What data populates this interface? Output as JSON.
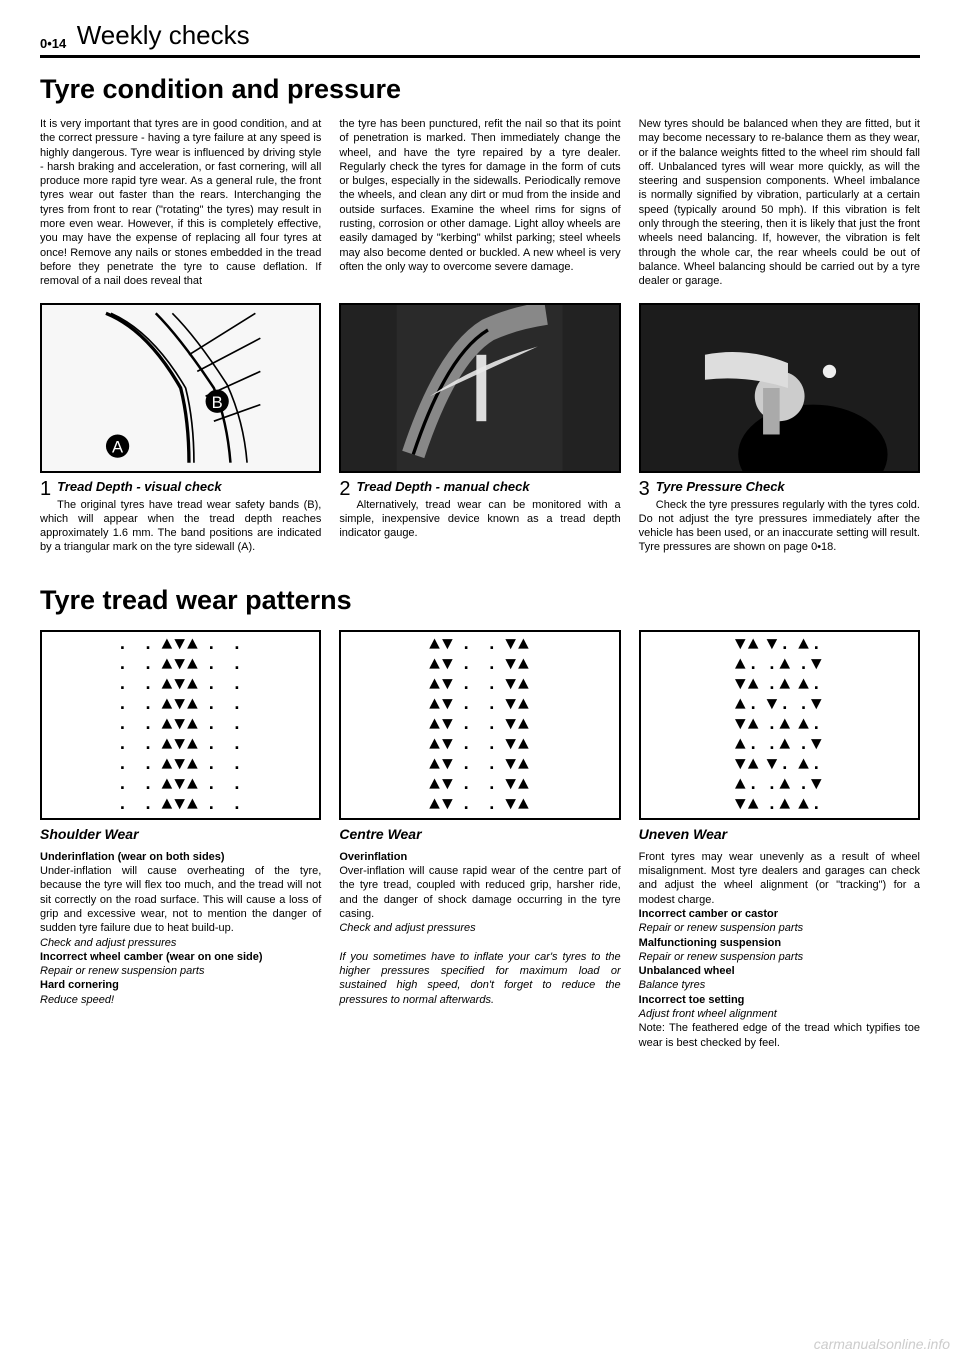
{
  "header": {
    "num": "0•14",
    "title": "Weekly checks"
  },
  "main_title": "Tyre condition and pressure",
  "intro_cols": [
    "It is very important that tyres are in good condition, and at the correct pressure - having a tyre failure at any speed is highly dangerous. Tyre wear is influenced by driving style - harsh braking and acceleration, or fast cornering, will all produce more rapid tyre wear. As a general rule, the front tyres wear out faster than the rears. Interchanging the tyres from front to rear (\"rotating\" the tyres) may result in more even wear. However, if this is completely effective, you may have the expense of replacing all four tyres at once! Remove any nails or stones embedded in the tread before they penetrate the tyre to cause deflation. If removal of a nail does reveal that",
    "the tyre has been punctured, refit the nail so that its point of penetration is marked. Then immediately change the wheel, and have the tyre repaired by a tyre dealer. Regularly check the tyres for damage in the form of cuts or bulges, especially in the sidewalls. Periodically remove the wheels, and clean any dirt or mud from the inside and outside surfaces. Examine the wheel rims for signs of rusting, corrosion or other damage. Light alloy wheels are easily damaged by \"kerbing\" whilst parking; steel wheels may also become dented or buckled. A new wheel is very often the only way to overcome severe damage.",
    "New tyres should be balanced when they are fitted, but it may become necessary to re-balance them as they wear, or if the balance weights fitted to the wheel rim should fall off. Unbalanced tyres will wear more quickly, as will the steering and suspension components. Wheel imbalance is normally signified by vibration, particularly at a certain speed (typically around 50 mph). If this vibration is felt only through the steering, then it is likely that just the front wheels need balancing. If, however, the vibration is felt through the whole car, the rear wheels could be out of balance. Wheel balancing should be carried out by a tyre dealer or garage."
  ],
  "figs": [
    {
      "num": "1",
      "title": "Tread Depth - visual check",
      "text": "The original tyres have tread wear safety bands (B), which will appear when the tread depth reaches approximately 1.6 mm. The band positions are indicated by a triangular mark on the tyre sidewall (A)."
    },
    {
      "num": "2",
      "title": "Tread Depth - manual check",
      "text": "Alternatively, tread wear can be monitored with a simple, inexpensive device known as a tread depth indicator gauge."
    },
    {
      "num": "3",
      "title": "Tyre Pressure Check",
      "text": "Check the tyre pressures regularly with the tyres cold. Do not adjust the tyre pressures immediately after the vehicle has been used, or an inaccurate setting will result. Tyre pressures are shown on page 0•18."
    }
  ],
  "patterns_title": "Tyre tread wear patterns",
  "patterns": [
    {
      "title": "Shoulder Wear",
      "lines": [
        [
          "b",
          "Underinflation (wear on both sides)"
        ],
        [
          "",
          "Under-inflation will cause overheating of the tyre, because the tyre will flex too much, and the tread will not sit correctly on the road surface. This will cause a loss of grip and excessive wear, not to mention the danger of sudden tyre failure due to heat build-up."
        ],
        [
          "i",
          "Check and adjust pressures"
        ],
        [
          "b",
          "Incorrect wheel camber (wear on one side)"
        ],
        [
          "i",
          "Repair or renew suspension parts"
        ],
        [
          "b",
          "Hard cornering"
        ],
        [
          "i",
          "Reduce speed!"
        ]
      ],
      "tread": "shoulder"
    },
    {
      "title": "Centre Wear",
      "lines": [
        [
          "b",
          "Overinflation"
        ],
        [
          "",
          "Over-inflation will cause rapid wear of the centre part of the tyre tread, coupled with reduced grip, harsher ride, and the danger of shock damage occurring in the tyre casing."
        ],
        [
          "i",
          "Check and adjust pressures"
        ],
        [
          "",
          ""
        ],
        [
          "i",
          "If you sometimes have to inflate your car's tyres to the higher pressures specified for maximum load or sustained high speed, don't forget to reduce the pressures to normal afterwards."
        ]
      ],
      "tread": "centre"
    },
    {
      "title": "Uneven Wear",
      "lines": [
        [
          "",
          "Front tyres may wear unevenly as a result of wheel misalignment. Most tyre dealers and garages can check and adjust the wheel alignment (or \"tracking\") for a modest charge."
        ],
        [
          "b",
          "Incorrect camber or castor"
        ],
        [
          "i",
          "Repair or renew suspension parts"
        ],
        [
          "b",
          "Malfunctioning suspension"
        ],
        [
          "i",
          "Repair or renew suspension parts"
        ],
        [
          "b",
          "Unbalanced wheel"
        ],
        [
          "i",
          "Balance tyres"
        ],
        [
          "b",
          "Incorrect toe setting"
        ],
        [
          "i",
          "Adjust front wheel alignment"
        ],
        [
          "",
          "Note: The feathered edge of the tread which typifies toe wear is best checked by feel."
        ]
      ],
      "tread": "uneven"
    }
  ],
  "watermark": "carmanualsonline.info"
}
